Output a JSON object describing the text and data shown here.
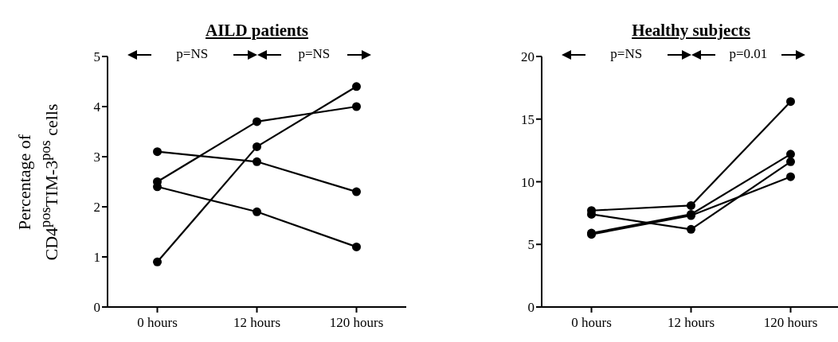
{
  "chart_data": [
    {
      "type": "line",
      "title": "AILD patients",
      "ylabel": "Percentage of\nCD4$^{pos}$TIM-3$^{pos}$ cells",
      "categories": [
        "0 hours",
        "12 hours",
        "120 hours"
      ],
      "series": [
        {
          "color": "#000000",
          "values": [
            3.1,
            2.9,
            2.3
          ]
        },
        {
          "color": "#000000",
          "values": [
            2.5,
            3.7,
            4.0
          ]
        },
        {
          "color": "#000000",
          "values": [
            0.9,
            3.2,
            4.4
          ]
        },
        {
          "color": "#000000",
          "values": [
            2.4,
            1.9,
            1.2
          ]
        }
      ],
      "ylim": [
        0,
        5
      ],
      "yticks": [
        0,
        1,
        2,
        3,
        4,
        5
      ],
      "marker": "circle",
      "annotations": [
        "p=NS",
        "p=NS"
      ]
    },
    {
      "type": "line",
      "title": "Healthy subjects",
      "categories": [
        "0 hours",
        "12 hours",
        "120 hours"
      ],
      "series": [
        {
          "color": "#000000",
          "values": [
            7.7,
            8.1,
            16.4
          ]
        },
        {
          "color": "#000000",
          "values": [
            7.4,
            6.2,
            11.6
          ]
        },
        {
          "color": "#000000",
          "values": [
            5.9,
            7.4,
            12.2
          ]
        },
        {
          "color": "#000000",
          "values": [
            5.8,
            7.3,
            10.4
          ]
        }
      ],
      "ylim": [
        0,
        20
      ],
      "yticks": [
        0,
        5,
        10,
        15,
        20
      ],
      "marker": "circle",
      "annotations": [
        "p=NS",
        "p=0.01"
      ]
    }
  ]
}
